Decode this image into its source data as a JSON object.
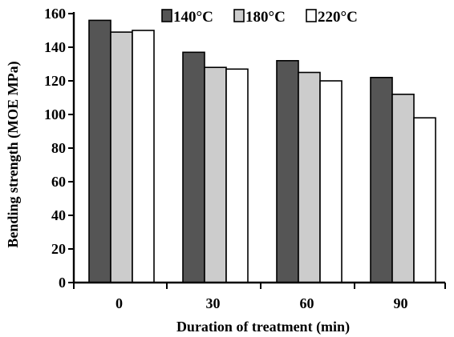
{
  "chart_data": {
    "type": "bar",
    "title": "",
    "xlabel": "Duration of treatment (min)",
    "ylabel": "Bending strength (MOE MPa)",
    "categories": [
      "0",
      "30",
      "60",
      "90"
    ],
    "ylim": [
      0,
      160
    ],
    "yticks": [
      0,
      20,
      40,
      60,
      80,
      100,
      120,
      140,
      160
    ],
    "grid": false,
    "legend_position": "top",
    "series": [
      {
        "name": "140°C",
        "color": "#555555",
        "values": [
          156,
          137,
          132,
          122
        ]
      },
      {
        "name": "180°C",
        "color": "#cccccc",
        "values": [
          149,
          128,
          125,
          112
        ]
      },
      {
        "name": "220°C",
        "color": "#ffffff",
        "values": [
          150,
          127,
          120,
          98
        ]
      }
    ]
  }
}
